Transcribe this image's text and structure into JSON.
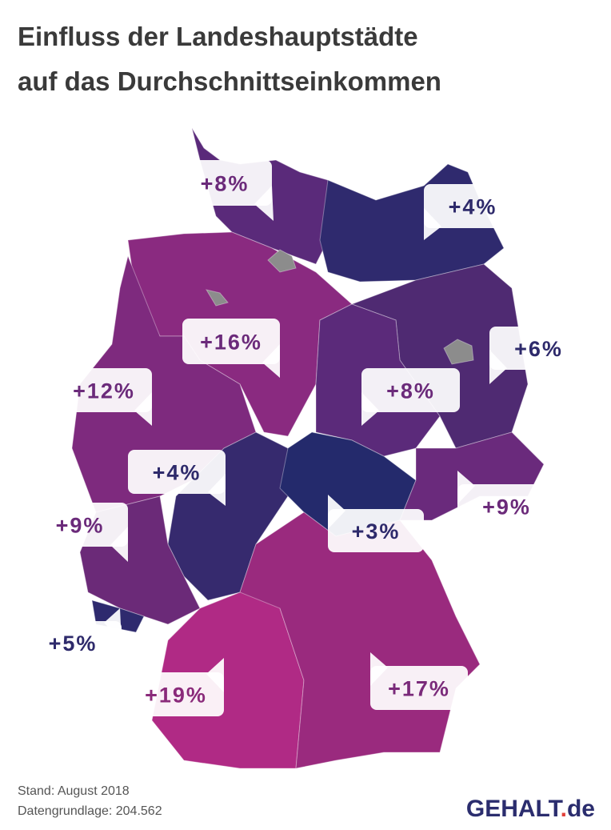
{
  "header": {
    "title_lines": [
      "Einfluss der Landeshauptstädte",
      "auf das Durchschnittseinkommen"
    ]
  },
  "callouts": [
    {
      "label": "+8%",
      "color": "#6b2a7a"
    },
    {
      "label": "+4%",
      "color": "#2e2a6b"
    },
    {
      "label": "+16%",
      "color": "#6b2a7a"
    },
    {
      "label": "+6%",
      "color": "#2e2a6b"
    },
    {
      "label": "+12%",
      "color": "#6b2a7a"
    },
    {
      "label": "+8%",
      "color": "#6b2a7a"
    },
    {
      "label": "+4%",
      "color": "#2e2a6b"
    },
    {
      "label": "+9%",
      "color": "#6b2a7a"
    },
    {
      "label": "+9%",
      "color": "#6b2a7a"
    },
    {
      "label": "+3%",
      "color": "#2e2a6b"
    },
    {
      "label": "+5%",
      "color": "#2e2a6b"
    },
    {
      "label": "+19%",
      "color": "#8a2a7a"
    },
    {
      "label": "+17%",
      "color": "#7a2a7a"
    }
  ],
  "footer": {
    "lines": [
      "Stand: August 2018",
      "Datengrundlage: 204.562"
    ]
  },
  "logo": {
    "name": "GEHALT",
    "dot": ".",
    "tld": "de"
  }
}
